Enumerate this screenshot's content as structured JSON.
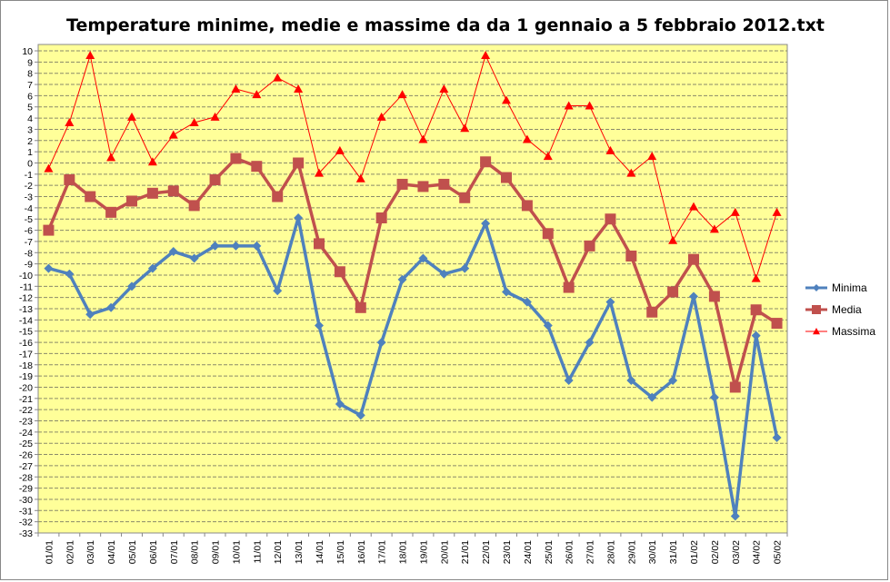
{
  "chart_data": {
    "type": "line",
    "title": "Temperature minime, medie e massime da da 1 gennaio a 5 febbraio 2012.txt",
    "xlabel": "",
    "ylabel": "",
    "ylim": [
      -33,
      10
    ],
    "ytick_step": 1,
    "grid": true,
    "legend_position": "right",
    "plot_background": "#FFFF99",
    "categories": [
      "01/01",
      "02/01",
      "03/01",
      "04/01",
      "05/01",
      "06/01",
      "07/01",
      "08/01",
      "09/01",
      "10/01",
      "11/01",
      "12/01",
      "13/01",
      "14/01",
      "15/01",
      "16/01",
      "17/01",
      "18/01",
      "19/01",
      "20/01",
      "21/01",
      "22/01",
      "23/01",
      "24/01",
      "25/01",
      "26/01",
      "27/01",
      "28/01",
      "29/01",
      "30/01",
      "31/01",
      "01/02",
      "02/02",
      "03/02",
      "04/02",
      "05/02"
    ],
    "series": [
      {
        "name": "Minima",
        "color": "#4F81BD",
        "marker": "diamond",
        "values": [
          -9.4,
          -9.9,
          -13.5,
          -12.9,
          -11,
          -9.4,
          -7.9,
          -8.5,
          -7.4,
          -7.4,
          -7.4,
          -11.4,
          -4.9,
          -14.5,
          -21.5,
          -22.5,
          -16,
          -10.4,
          -8.5,
          -9.9,
          -9.4,
          -5.4,
          -11.5,
          -12.4,
          -14.5,
          -19.4,
          -16,
          -12.4,
          -19.4,
          -20.9,
          -19.4,
          -11.9,
          -20.9,
          -31.5,
          -15.4,
          -24.5
        ]
      },
      {
        "name": "Media",
        "color": "#C0504D",
        "marker": "square",
        "values": [
          -6,
          -1.5,
          -3,
          -4.4,
          -3.4,
          -2.7,
          -2.5,
          -3.8,
          -1.5,
          0.4,
          -0.3,
          -3,
          0,
          -7.2,
          -9.7,
          -12.9,
          -4.9,
          -1.9,
          -2.1,
          -1.9,
          -3.1,
          0.1,
          -1.3,
          -3.8,
          -6.3,
          -11.1,
          -7.4,
          -5,
          -8.3,
          -13.3,
          -11.5,
          -8.6,
          -11.9,
          -20,
          -13.1,
          -14.3
        ]
      },
      {
        "name": "Massima",
        "color": "#FF0000",
        "marker": "triangle",
        "values": [
          -0.5,
          3.6,
          9.6,
          0.5,
          4.1,
          0.1,
          2.5,
          3.6,
          4.1,
          6.6,
          6.1,
          7.6,
          6.6,
          -0.9,
          1.1,
          -1.4,
          4.1,
          6.1,
          2.1,
          6.6,
          3.1,
          9.6,
          5.6,
          2.1,
          0.6,
          5.1,
          5.1,
          1.1,
          -0.9,
          0.6,
          -6.9,
          -3.9,
          -5.9,
          -4.4,
          -10.3,
          -4.4
        ]
      }
    ]
  }
}
